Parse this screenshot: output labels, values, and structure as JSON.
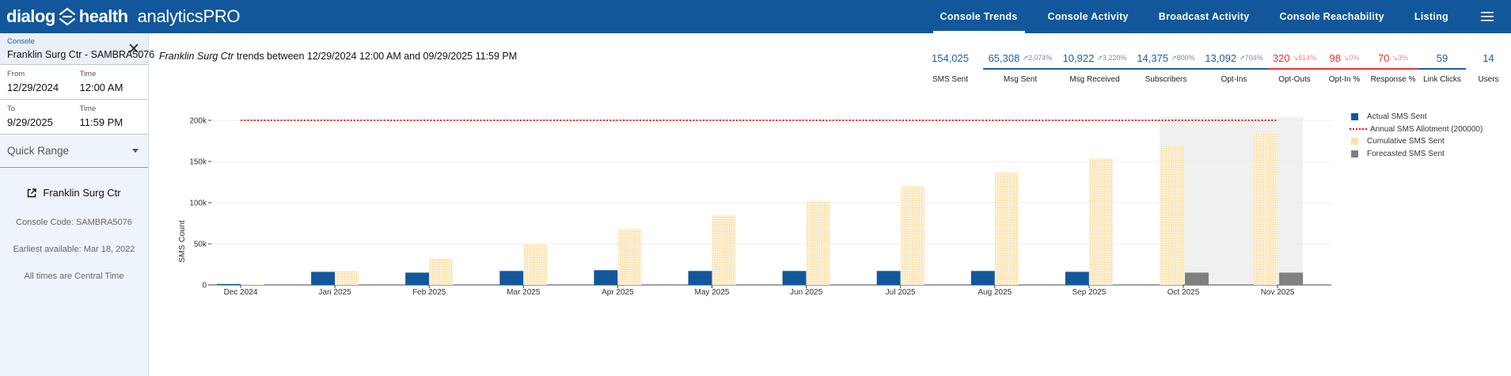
{
  "brand": {
    "part1": "dialog",
    "part2": "health",
    "product": "analyticsPRO"
  },
  "nav": {
    "items": [
      {
        "label": "Console Trends",
        "active": true
      },
      {
        "label": "Console Activity",
        "active": false
      },
      {
        "label": "Broadcast Activity",
        "active": false
      },
      {
        "label": "Console Reachability",
        "active": false
      },
      {
        "label": "Listing",
        "active": false
      }
    ],
    "menu_icon": "hamburger-menu-icon"
  },
  "sidebar": {
    "console_label": "Console",
    "console_value": "Franklin Surg Ctr - SAMBRA5076",
    "from_label": "From",
    "from_value": "12/29/2024",
    "from_time_label": "Time",
    "from_time_value": "12:00 AM",
    "to_label": "To",
    "to_value": "9/29/2025",
    "to_time_label": "Time",
    "to_time_value": "11:59 PM",
    "quick_range": "Quick Range",
    "console_name": "Franklin Surg Ctr",
    "console_code": "Console Code: SAMBRA5076",
    "earliest": "Earliest available: Mar 18, 2022",
    "timezone": "All times are Central Time"
  },
  "header": {
    "console_name": "Franklin Surg Ctr",
    "trend_text": " trends between 12/29/2024 12:00 AM and 09/29/2025 11:59 PM"
  },
  "stats": [
    {
      "value": "154,025",
      "pct": "",
      "label": "SMS Sent",
      "color": "blue"
    },
    {
      "value": "65,308",
      "pct": "2,074%",
      "label": "Msg Sent",
      "color": "blue"
    },
    {
      "value": "10,922",
      "pct": "3,220%",
      "label": "Msg Received",
      "color": "blue"
    },
    {
      "value": "14,375",
      "pct": "800%",
      "label": "Subscribers",
      "color": "blue"
    },
    {
      "value": "13,092",
      "pct": "704%",
      "label": "Opt-Ins",
      "color": "blue"
    },
    {
      "value": "320",
      "pct": "814%",
      "label": "Opt-Outs",
      "color": "red"
    },
    {
      "value": "98",
      "pct": "0%",
      "label": "Opt-In %",
      "color": "red"
    },
    {
      "value": "70",
      "pct": "3%",
      "label": "Response %",
      "color": "red"
    },
    {
      "value": "59",
      "pct": "",
      "label": "Link Clicks",
      "color": "blue"
    },
    {
      "value": "14",
      "pct": "",
      "label": "Users",
      "color": "blue"
    }
  ],
  "chart_data": {
    "type": "bar",
    "categories": [
      "Dec 2024",
      "Jan 2025",
      "Feb 2025",
      "Mar 2025",
      "Apr 2025",
      "May 2025",
      "Jun 2025",
      "Jul 2025",
      "Aug 2025",
      "Sep 2025",
      "Oct 2025",
      "Nov 2025"
    ],
    "ylabel": "SMS Count",
    "ylim": [
      0,
      200000
    ],
    "yticks": [
      0,
      50000,
      100000,
      150000,
      200000
    ],
    "ytick_labels": [
      "0",
      "50k",
      "100k",
      "150k",
      "200k"
    ],
    "allotment": 200000,
    "forecast_region_start": "Oct 2025",
    "series": [
      {
        "name": "Actual SMS Sent",
        "color": "#12579b",
        "values": [
          1200,
          16000,
          15000,
          17000,
          18000,
          17000,
          17000,
          17000,
          17000,
          16000,
          null,
          null
        ]
      },
      {
        "name": "Annual SMS Allotment (200000)",
        "color": "#e11111",
        "values": [
          200000,
          200000,
          200000,
          200000,
          200000,
          200000,
          200000,
          200000,
          200000,
          200000,
          200000,
          200000
        ]
      },
      {
        "name": "Cumulative SMS Sent",
        "color": "#ffe2a6",
        "values": [
          1200,
          17000,
          32000,
          50000,
          68000,
          85000,
          102000,
          120000,
          137000,
          154000,
          169000,
          185000
        ]
      },
      {
        "name": "Forecasted SMS Sent",
        "color": "#808080",
        "values": [
          null,
          null,
          null,
          null,
          null,
          null,
          null,
          null,
          null,
          null,
          15000,
          15000
        ]
      }
    ],
    "legend_position": "right"
  }
}
